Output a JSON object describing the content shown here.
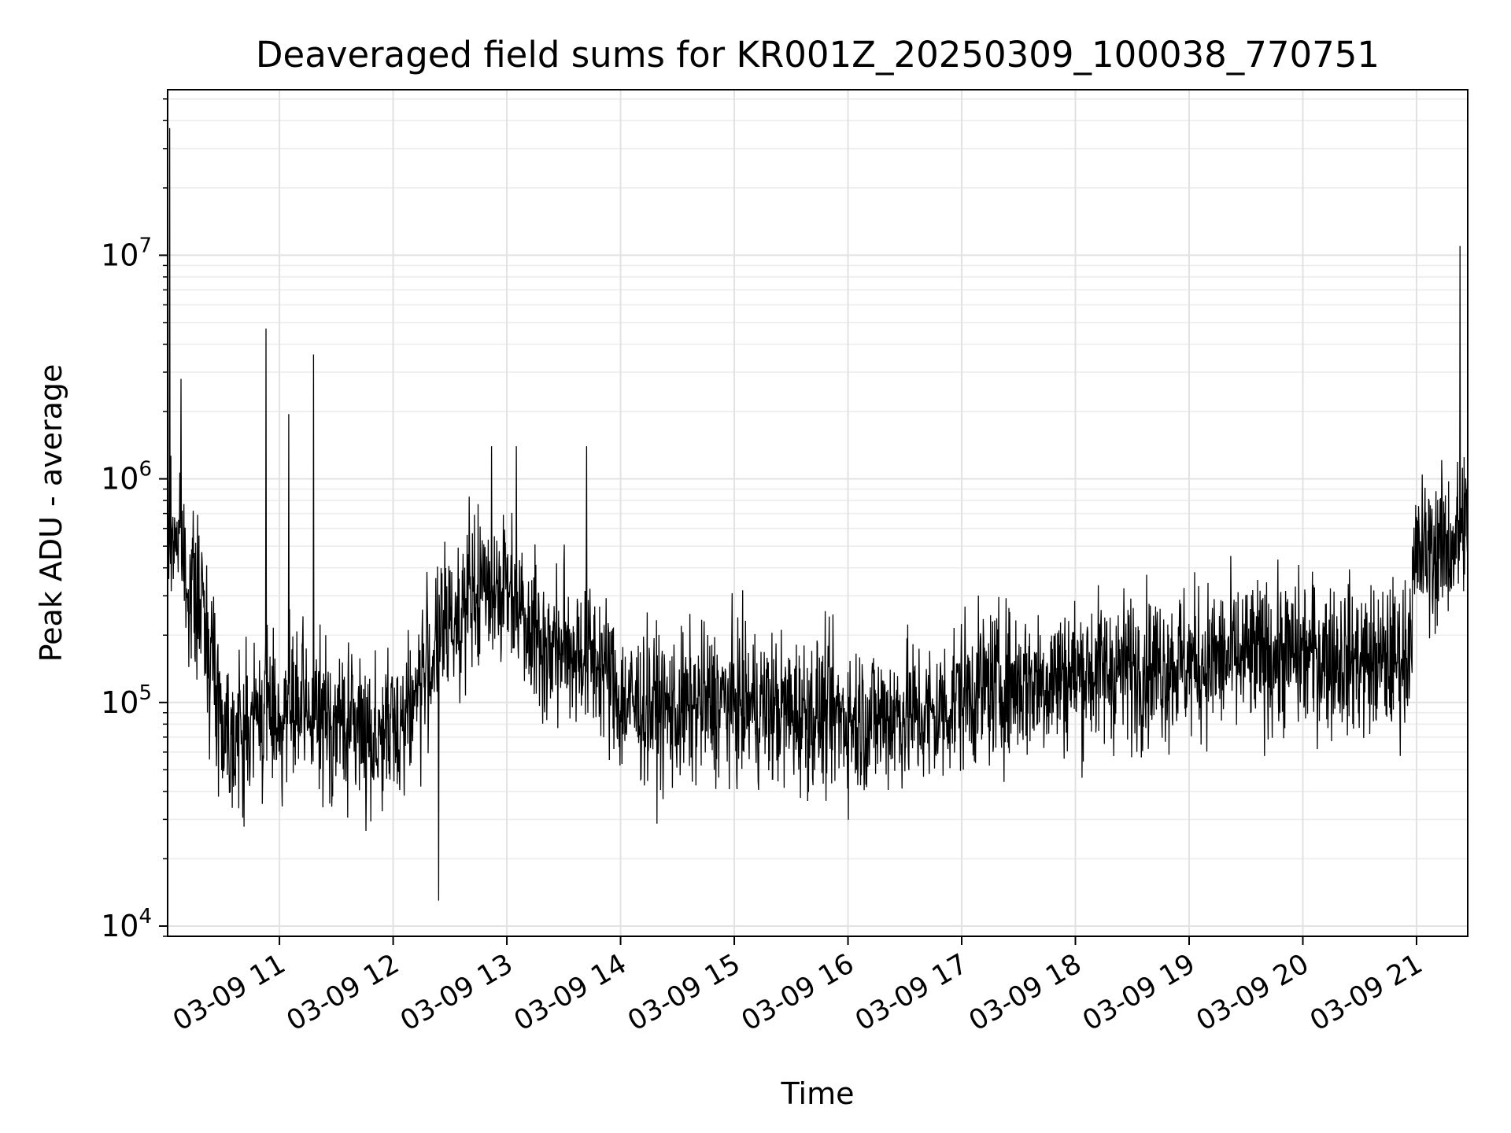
{
  "chart_data": {
    "type": "line",
    "title": "Deaveraged field sums for KR001Z_20250309_100038_770751",
    "xlabel": "Time",
    "ylabel": "Peak ADU - average",
    "yscale": "log",
    "ylim": [
      9000,
      55000000
    ],
    "xlim": [
      "2025-03-09 10:01",
      "2025-03-09 21:27"
    ],
    "grid": true,
    "legend": "none",
    "line_color": "#000000",
    "x_ticks": [
      "2025-03-09 11:00",
      "2025-03-09 12:00",
      "2025-03-09 13:00",
      "2025-03-09 14:00",
      "2025-03-09 15:00",
      "2025-03-09 16:00",
      "2025-03-09 17:00",
      "2025-03-09 18:00",
      "2025-03-09 19:00",
      "2025-03-09 20:00",
      "2025-03-09 21:00"
    ],
    "x_tick_labels": [
      "03-09 11",
      "03-09 12",
      "03-09 13",
      "03-09 14",
      "03-09 15",
      "03-09 16",
      "03-09 17",
      "03-09 18",
      "03-09 19",
      "03-09 20",
      "03-09 21"
    ],
    "y_tick_labels": [
      {
        "value": 10000,
        "base": "10",
        "exp": "4"
      },
      {
        "value": 100000,
        "base": "10",
        "exp": "5"
      },
      {
        "value": 1000000,
        "base": "10",
        "exp": "6"
      },
      {
        "value": 10000000,
        "base": "10",
        "exp": "7"
      }
    ],
    "series": [
      {
        "x": [
          "2025-03-09 10:01",
          "2025-03-09 10:05",
          "2025-03-09 10:10",
          "2025-03-09 10:15",
          "2025-03-09 10:20",
          "2025-03-09 10:25",
          "2025-03-09 10:30",
          "2025-03-09 10:35",
          "2025-03-09 10:40",
          "2025-03-09 10:45",
          "2025-03-09 10:50",
          "2025-03-09 10:55",
          "2025-03-09 11:00",
          "2025-03-09 11:10",
          "2025-03-09 11:20",
          "2025-03-09 11:30",
          "2025-03-09 11:40",
          "2025-03-09 11:50",
          "2025-03-09 12:00",
          "2025-03-09 12:10",
          "2025-03-09 12:20",
          "2025-03-09 12:30",
          "2025-03-09 12:40",
          "2025-03-09 12:50",
          "2025-03-09 13:00",
          "2025-03-09 13:10",
          "2025-03-09 13:20",
          "2025-03-09 13:30",
          "2025-03-09 13:40",
          "2025-03-09 13:50",
          "2025-03-09 14:00",
          "2025-03-09 14:15",
          "2025-03-09 14:30",
          "2025-03-09 14:45",
          "2025-03-09 15:00",
          "2025-03-09 15:15",
          "2025-03-09 15:30",
          "2025-03-09 15:45",
          "2025-03-09 16:00",
          "2025-03-09 16:15",
          "2025-03-09 16:30",
          "2025-03-09 16:45",
          "2025-03-09 17:00",
          "2025-03-09 17:20",
          "2025-03-09 17:40",
          "2025-03-09 18:00",
          "2025-03-09 18:20",
          "2025-03-09 18:40",
          "2025-03-09 19:00",
          "2025-03-09 19:20",
          "2025-03-09 19:40",
          "2025-03-09 20:00",
          "2025-03-09 20:20",
          "2025-03-09 20:40",
          "2025-03-09 20:55",
          "2025-03-09 21:00",
          "2025-03-09 21:10",
          "2025-03-09 21:20",
          "2025-03-09 21:27"
        ],
        "values": [
          500000,
          600000,
          400000,
          300000,
          250000,
          150000,
          80000,
          75000,
          70000,
          80000,
          90000,
          100000,
          85000,
          90000,
          85000,
          80000,
          80000,
          70000,
          75000,
          100000,
          160000,
          230000,
          280000,
          330000,
          330000,
          260000,
          170000,
          180000,
          170000,
          150000,
          100000,
          95000,
          90000,
          100000,
          100000,
          95000,
          90000,
          90000,
          85000,
          85000,
          90000,
          85000,
          110000,
          120000,
          125000,
          135000,
          140000,
          145000,
          150000,
          155000,
          160000,
          165000,
          160000,
          150000,
          165000,
          450000,
          480000,
          520000,
          600000
        ]
      }
    ],
    "spikes": [
      {
        "x": "2025-03-09 10:02",
        "y": 37000000
      },
      {
        "x": "2025-03-09 10:08",
        "y": 2800000
      },
      {
        "x": "2025-03-09 10:53",
        "y": 4700000
      },
      {
        "x": "2025-03-09 11:05",
        "y": 1950000
      },
      {
        "x": "2025-03-09 11:18",
        "y": 3600000
      },
      {
        "x": "2025-03-09 12:52",
        "y": 1400000
      },
      {
        "x": "2025-03-09 13:05",
        "y": 1400000
      },
      {
        "x": "2025-03-09 13:42",
        "y": 1400000
      },
      {
        "x": "2025-03-09 21:23",
        "y": 11000000
      },
      {
        "x": "2025-03-09 21:25",
        "y": 1250000
      },
      {
        "x": "2025-03-09 12:24",
        "y": 13000
      }
    ]
  }
}
